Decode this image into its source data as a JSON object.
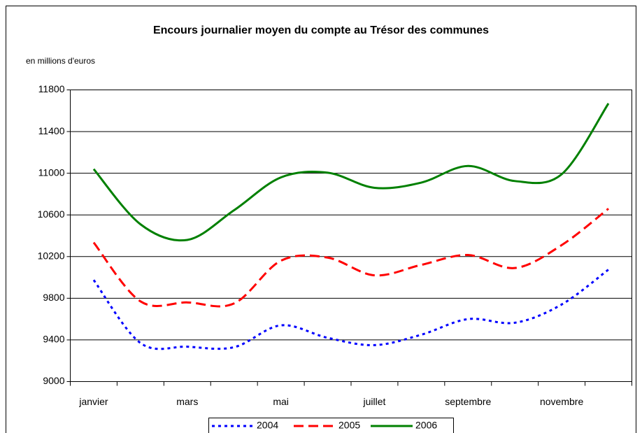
{
  "chart_data": {
    "type": "line",
    "title": "Encours journalier moyen du compte au Trésor des communes",
    "subtitle": "en millions d'euros",
    "categories": [
      "janvier",
      null,
      "mars",
      null,
      "mai",
      null,
      "juillet",
      null,
      "septembre",
      null,
      "novembre",
      null
    ],
    "series": [
      {
        "name": "2004",
        "color": "#0000ff",
        "style": "dotted",
        "values": [
          9975,
          9370,
          9335,
          9330,
          9540,
          9420,
          9350,
          9450,
          9600,
          9565,
          9740,
          10075
        ]
      },
      {
        "name": "2005",
        "color": "#ff0000",
        "style": "dashed",
        "values": [
          10335,
          9770,
          9760,
          9750,
          10160,
          10190,
          10020,
          10120,
          10215,
          10090,
          10310,
          10660
        ]
      },
      {
        "name": "2006",
        "color": "#008000",
        "style": "solid",
        "values": [
          11040,
          10510,
          10360,
          10645,
          10960,
          11005,
          10860,
          10910,
          11070,
          10925,
          10990,
          11670
        ]
      }
    ],
    "ylim": [
      9000,
      11800
    ],
    "yticks": [
      9000,
      9400,
      9800,
      10200,
      10600,
      11000,
      11400,
      11800
    ],
    "grid": true,
    "legend": "bottom"
  }
}
